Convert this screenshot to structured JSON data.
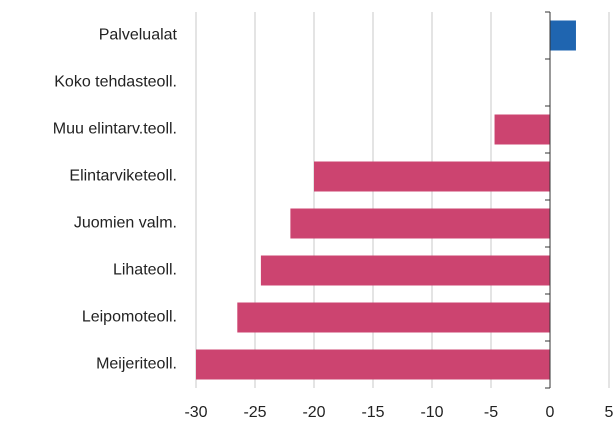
{
  "chart_data": {
    "type": "barh",
    "categories": [
      "Palvelualat",
      "Koko tehdasteoll.",
      "Muu elintarv.teoll.",
      "Elintarviketeoll.",
      "Juomien valm.",
      "Lihateoll.",
      "Leipomoteoll.",
      "Meijeriteoll."
    ],
    "values": [
      2.2,
      0,
      -4.7,
      -20,
      -22,
      -24.5,
      -26.5,
      -30
    ],
    "colors": [
      "#1f65b0",
      "#cc4470",
      "#cc4470",
      "#cc4470",
      "#cc4470",
      "#cc4470",
      "#cc4470",
      "#cc4470"
    ],
    "xlim": [
      -30,
      5
    ],
    "xticks": [
      -30,
      -25,
      -20,
      -15,
      -10,
      -5,
      0,
      5
    ],
    "grid": true
  }
}
